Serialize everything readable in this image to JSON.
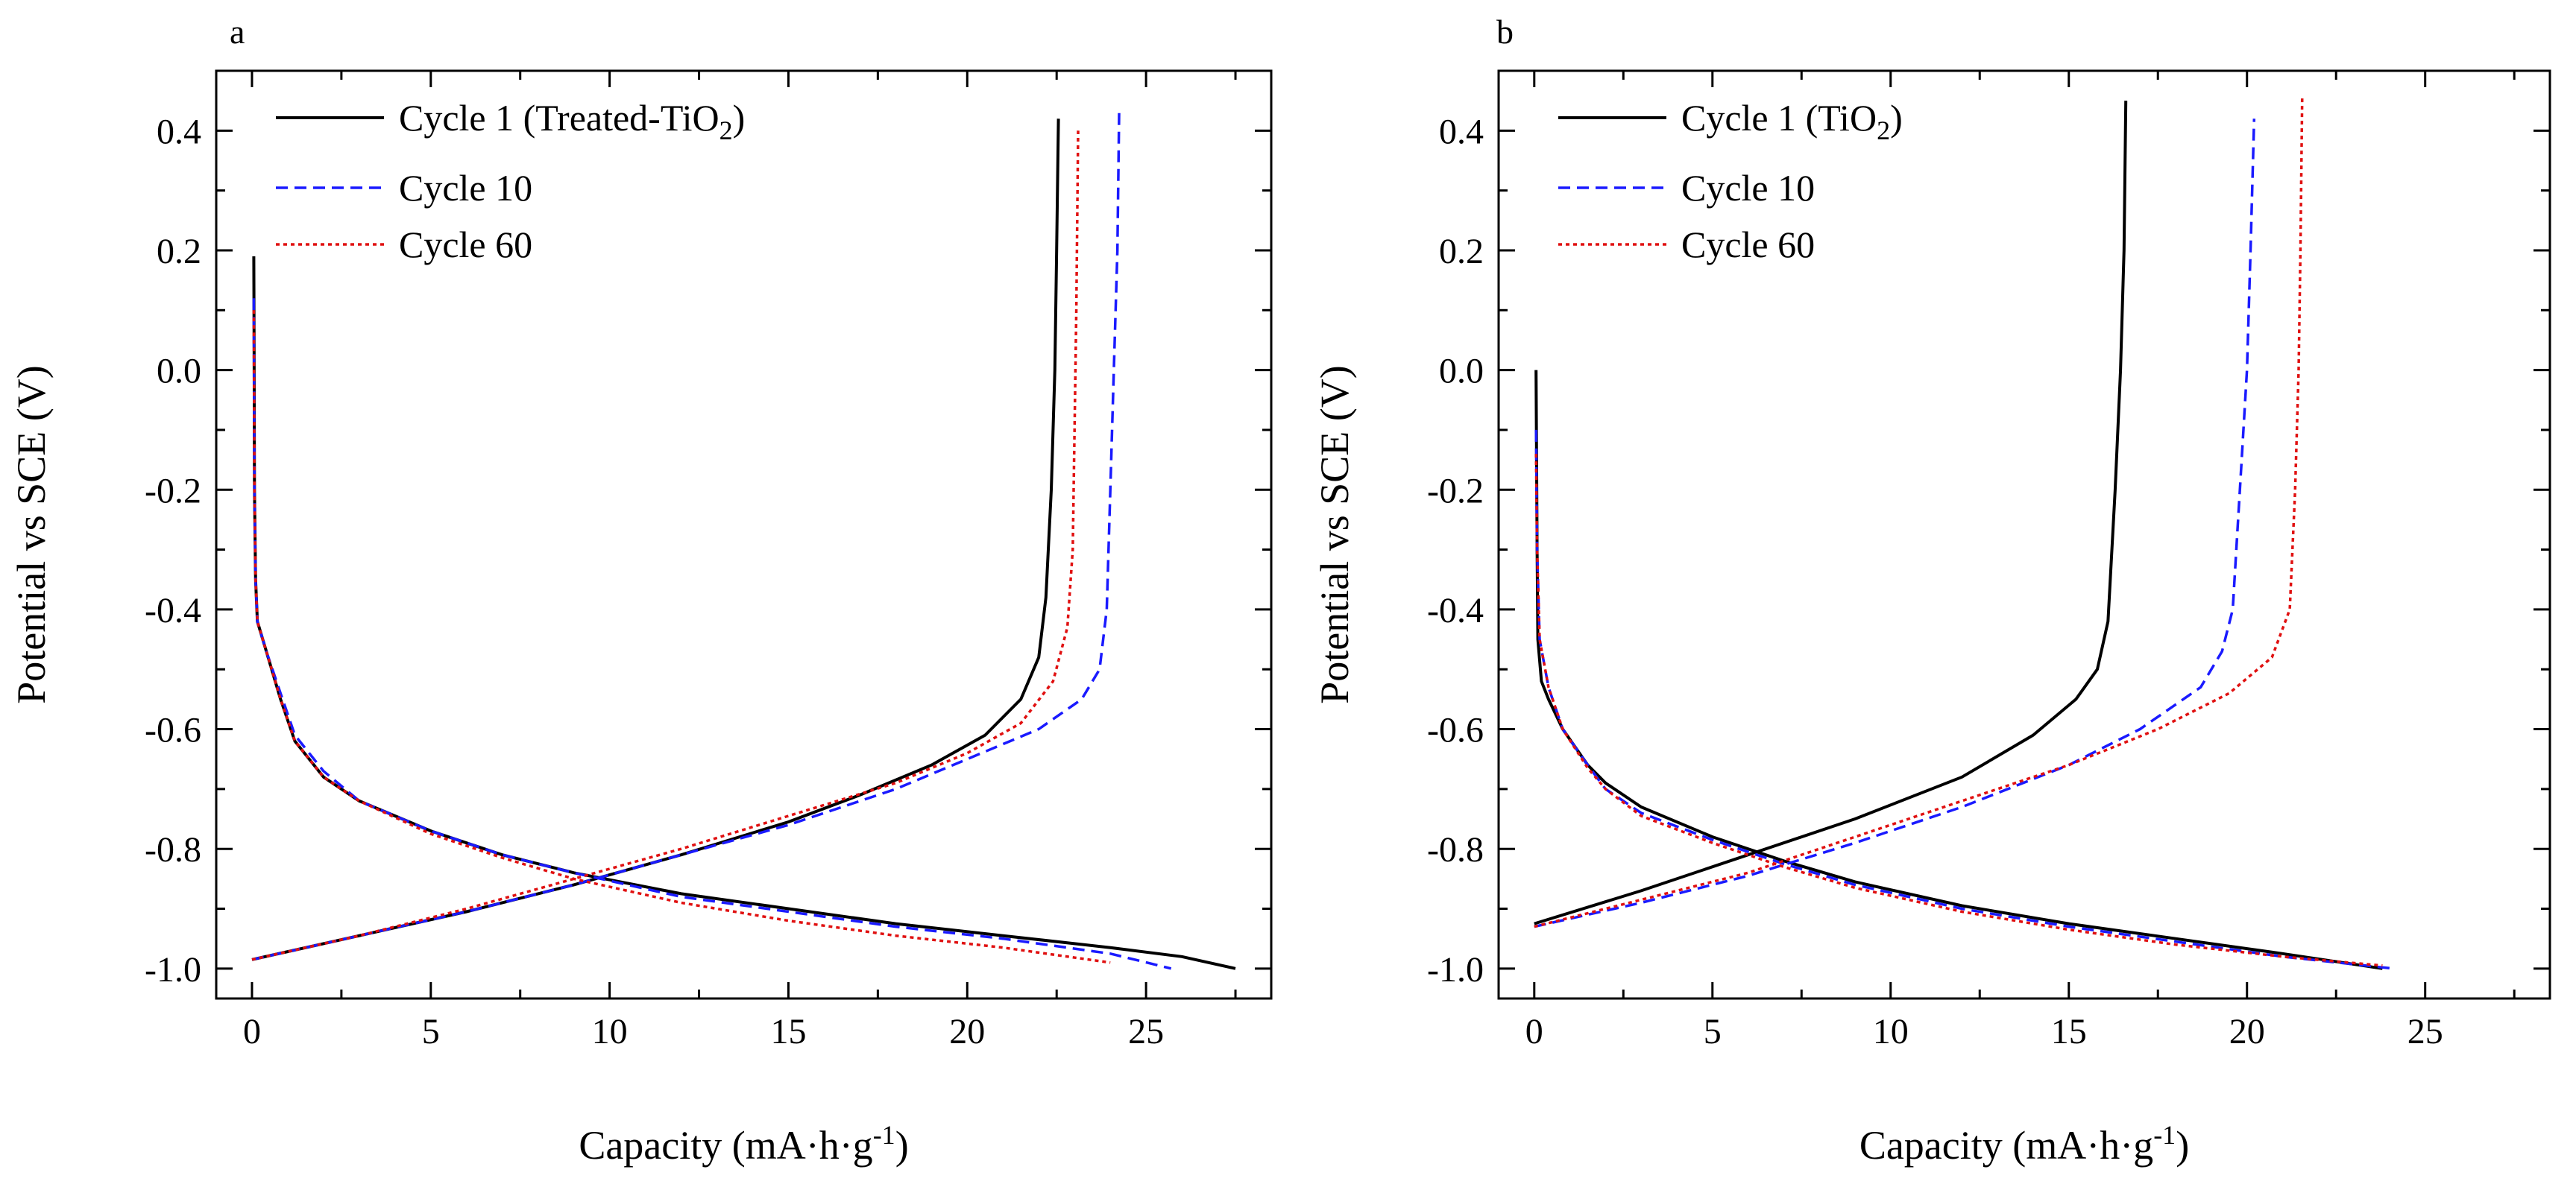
{
  "chart_data": [
    {
      "type": "line",
      "panel_label": "a",
      "xlabel": "Capacity (mA·h·g-1)",
      "xlabel_parts": {
        "main": "Capacity (mA·h·g",
        "sup": "-1",
        "end": ")"
      },
      "ylabel": "Potential vs SCE (V)",
      "xlim": [
        -1,
        28.5
      ],
      "ylim": [
        -1.05,
        0.5
      ],
      "xticks": [
        0,
        5,
        10,
        15,
        20,
        25
      ],
      "xtick_labels": [
        "0",
        "5",
        "10",
        "15",
        "20",
        "25"
      ],
      "yticks": [
        0.4,
        0.2,
        0.0,
        -0.2,
        -0.4,
        -0.6,
        -0.8,
        -1.0
      ],
      "ytick_labels": [
        "0.4",
        "0.2",
        "0.0",
        "-0.2",
        "-0.4",
        "-0.6",
        "-0.8",
        "-1.0"
      ],
      "legend_position": "top-left",
      "series": [
        {
          "name": "Cycle 1 (Treated-TiO2)",
          "legend_parts": {
            "main": "Cycle 1 (Treated-TiO",
            "sub": "2",
            "end": ")"
          },
          "color": "#000000",
          "style": "solid",
          "discharge": [
            [
              0.05,
              0.19
            ],
            [
              0.06,
              0.05
            ],
            [
              0.07,
              -0.2
            ],
            [
              0.1,
              -0.35
            ],
            [
              0.15,
              -0.42
            ],
            [
              0.4,
              -0.47
            ],
            [
              0.8,
              -0.55
            ],
            [
              1.2,
              -0.62
            ],
            [
              2,
              -0.68
            ],
            [
              3,
              -0.72
            ],
            [
              5,
              -0.77
            ],
            [
              7,
              -0.81
            ],
            [
              9,
              -0.84
            ],
            [
              12,
              -0.875
            ],
            [
              15,
              -0.9
            ],
            [
              18,
              -0.925
            ],
            [
              21,
              -0.945
            ],
            [
              24,
              -0.965
            ],
            [
              26,
              -0.98
            ],
            [
              27.5,
              -1.0
            ]
          ],
          "charge": [
            [
              0,
              -0.985
            ],
            [
              3,
              -0.945
            ],
            [
              6,
              -0.905
            ],
            [
              9,
              -0.86
            ],
            [
              12,
              -0.81
            ],
            [
              15,
              -0.755
            ],
            [
              17,
              -0.71
            ],
            [
              19,
              -0.66
            ],
            [
              20.5,
              -0.61
            ],
            [
              21.5,
              -0.55
            ],
            [
              22,
              -0.48
            ],
            [
              22.2,
              -0.38
            ],
            [
              22.35,
              -0.2
            ],
            [
              22.45,
              0.0
            ],
            [
              22.5,
              0.2
            ],
            [
              22.55,
              0.42
            ]
          ]
        },
        {
          "name": "Cycle 10",
          "legend_parts": {
            "main": "Cycle 10",
            "sub": "",
            "end": ""
          },
          "color": "#1a1aff",
          "style": "dashed",
          "discharge": [
            [
              0.05,
              0.12
            ],
            [
              0.07,
              -0.2
            ],
            [
              0.1,
              -0.35
            ],
            [
              0.15,
              -0.42
            ],
            [
              0.4,
              -0.47
            ],
            [
              0.8,
              -0.54
            ],
            [
              1.2,
              -0.61
            ],
            [
              2,
              -0.67
            ],
            [
              3,
              -0.72
            ],
            [
              5,
              -0.77
            ],
            [
              7,
              -0.81
            ],
            [
              9,
              -0.84
            ],
            [
              12,
              -0.88
            ],
            [
              15,
              -0.905
            ],
            [
              18,
              -0.93
            ],
            [
              21,
              -0.95
            ],
            [
              24,
              -0.975
            ],
            [
              25.7,
              -1.0
            ]
          ],
          "charge": [
            [
              0,
              -0.985
            ],
            [
              3,
              -0.945
            ],
            [
              6,
              -0.905
            ],
            [
              9,
              -0.86
            ],
            [
              12,
              -0.81
            ],
            [
              15,
              -0.76
            ],
            [
              18,
              -0.7
            ],
            [
              20,
              -0.65
            ],
            [
              22,
              -0.6
            ],
            [
              23.2,
              -0.55
            ],
            [
              23.7,
              -0.5
            ],
            [
              23.9,
              -0.4
            ],
            [
              24,
              -0.2
            ],
            [
              24.1,
              0.0
            ],
            [
              24.2,
              0.2
            ],
            [
              24.25,
              0.44
            ]
          ]
        },
        {
          "name": "Cycle 60",
          "legend_parts": {
            "main": "Cycle 60",
            "sub": "",
            "end": ""
          },
          "color": "#e01010",
          "style": "dotted",
          "discharge": [
            [
              0.05,
              0.1
            ],
            [
              0.07,
              -0.2
            ],
            [
              0.1,
              -0.35
            ],
            [
              0.15,
              -0.42
            ],
            [
              0.4,
              -0.47
            ],
            [
              0.8,
              -0.55
            ],
            [
              1.2,
              -0.62
            ],
            [
              2,
              -0.68
            ],
            [
              3,
              -0.72
            ],
            [
              5,
              -0.775
            ],
            [
              7,
              -0.815
            ],
            [
              9,
              -0.85
            ],
            [
              12,
              -0.89
            ],
            [
              15,
              -0.92
            ],
            [
              18,
              -0.945
            ],
            [
              21,
              -0.965
            ],
            [
              24,
              -0.99
            ]
          ],
          "charge": [
            [
              0,
              -0.985
            ],
            [
              3,
              -0.945
            ],
            [
              6,
              -0.9
            ],
            [
              9,
              -0.85
            ],
            [
              12,
              -0.8
            ],
            [
              15,
              -0.745
            ],
            [
              18,
              -0.69
            ],
            [
              20,
              -0.64
            ],
            [
              21.5,
              -0.59
            ],
            [
              22.4,
              -0.52
            ],
            [
              22.8,
              -0.43
            ],
            [
              22.95,
              -0.3
            ],
            [
              23,
              -0.1
            ],
            [
              23.05,
              0.1
            ],
            [
              23.1,
              0.4
            ]
          ]
        }
      ]
    },
    {
      "type": "line",
      "panel_label": "b",
      "xlabel": "Capacity (mA·h·g-1)",
      "xlabel_parts": {
        "main": "Capacity (mA·h·g",
        "sup": "-1",
        "end": ")"
      },
      "ylabel": "Potential vs SCE (V)",
      "xlim": [
        -1,
        28.5
      ],
      "ylim": [
        -1.05,
        0.5
      ],
      "xticks": [
        0,
        5,
        10,
        15,
        20,
        25
      ],
      "xtick_labels": [
        "0",
        "5",
        "10",
        "15",
        "20",
        "25"
      ],
      "yticks": [
        0.4,
        0.2,
        0.0,
        -0.2,
        -0.4,
        -0.6,
        -0.8,
        -1.0
      ],
      "ytick_labels": [
        "0.4",
        "0.2",
        "0.0",
        "-0.2",
        "-0.4",
        "-0.6",
        "-0.8",
        "-1.0"
      ],
      "legend_position": "top-left",
      "series": [
        {
          "name": "Cycle 1 (TiO2)",
          "legend_parts": {
            "main": "Cycle 1 (TiO",
            "sub": "2",
            "end": ")"
          },
          "color": "#000000",
          "style": "solid",
          "discharge": [
            [
              0.05,
              0.0
            ],
            [
              0.08,
              -0.3
            ],
            [
              0.1,
              -0.45
            ],
            [
              0.2,
              -0.52
            ],
            [
              0.4,
              -0.55
            ],
            [
              0.8,
              -0.6
            ],
            [
              1.5,
              -0.66
            ],
            [
              2,
              -0.69
            ],
            [
              3,
              -0.73
            ],
            [
              5,
              -0.78
            ],
            [
              7,
              -0.82
            ],
            [
              9,
              -0.855
            ],
            [
              12,
              -0.895
            ],
            [
              15,
              -0.925
            ],
            [
              18,
              -0.95
            ],
            [
              21,
              -0.975
            ],
            [
              23.8,
              -1.0
            ]
          ],
          "charge": [
            [
              0,
              -0.925
            ],
            [
              3,
              -0.87
            ],
            [
              6,
              -0.81
            ],
            [
              9,
              -0.75
            ],
            [
              12,
              -0.68
            ],
            [
              14,
              -0.61
            ],
            [
              15.2,
              -0.55
            ],
            [
              15.8,
              -0.5
            ],
            [
              16.1,
              -0.42
            ],
            [
              16.3,
              -0.2
            ],
            [
              16.45,
              0.0
            ],
            [
              16.55,
              0.2
            ],
            [
              16.6,
              0.45
            ]
          ]
        },
        {
          "name": "Cycle 10",
          "legend_parts": {
            "main": "Cycle 10",
            "sub": "",
            "end": ""
          },
          "color": "#1a1aff",
          "style": "dashed",
          "discharge": [
            [
              0.05,
              -0.1
            ],
            [
              0.08,
              -0.3
            ],
            [
              0.15,
              -0.45
            ],
            [
              0.4,
              -0.53
            ],
            [
              0.8,
              -0.6
            ],
            [
              1.5,
              -0.66
            ],
            [
              2,
              -0.7
            ],
            [
              3,
              -0.74
            ],
            [
              5,
              -0.785
            ],
            [
              7,
              -0.825
            ],
            [
              9,
              -0.86
            ],
            [
              12,
              -0.9
            ],
            [
              15,
              -0.93
            ],
            [
              18,
              -0.955
            ],
            [
              21,
              -0.98
            ],
            [
              24.1,
              -1.0
            ]
          ],
          "charge": [
            [
              0,
              -0.93
            ],
            [
              3,
              -0.89
            ],
            [
              6,
              -0.845
            ],
            [
              9,
              -0.79
            ],
            [
              12,
              -0.73
            ],
            [
              15,
              -0.66
            ],
            [
              17,
              -0.6
            ],
            [
              18.7,
              -0.53
            ],
            [
              19.3,
              -0.47
            ],
            [
              19.6,
              -0.4
            ],
            [
              19.8,
              -0.2
            ],
            [
              20,
              0.0
            ],
            [
              20.1,
              0.2
            ],
            [
              20.2,
              0.42
            ]
          ]
        },
        {
          "name": "Cycle 60",
          "legend_parts": {
            "main": "Cycle 60",
            "sub": "",
            "end": ""
          },
          "color": "#e01010",
          "style": "dotted",
          "discharge": [
            [
              0.05,
              -0.14
            ],
            [
              0.08,
              -0.3
            ],
            [
              0.15,
              -0.45
            ],
            [
              0.4,
              -0.53
            ],
            [
              0.8,
              -0.6
            ],
            [
              1.5,
              -0.665
            ],
            [
              2,
              -0.7
            ],
            [
              3,
              -0.745
            ],
            [
              5,
              -0.79
            ],
            [
              7,
              -0.83
            ],
            [
              9,
              -0.865
            ],
            [
              12,
              -0.905
            ],
            [
              15,
              -0.935
            ],
            [
              18,
              -0.96
            ],
            [
              21,
              -0.98
            ],
            [
              23.8,
              -0.995
            ]
          ],
          "charge": [
            [
              0,
              -0.93
            ],
            [
              3,
              -0.885
            ],
            [
              6,
              -0.84
            ],
            [
              9,
              -0.78
            ],
            [
              12,
              -0.72
            ],
            [
              15,
              -0.66
            ],
            [
              17.5,
              -0.6
            ],
            [
              19.5,
              -0.54
            ],
            [
              20.7,
              -0.48
            ],
            [
              21.2,
              -0.4
            ],
            [
              21.35,
              -0.2
            ],
            [
              21.45,
              0.0
            ],
            [
              21.5,
              0.2
            ],
            [
              21.55,
              0.46
            ]
          ]
        }
      ]
    }
  ]
}
